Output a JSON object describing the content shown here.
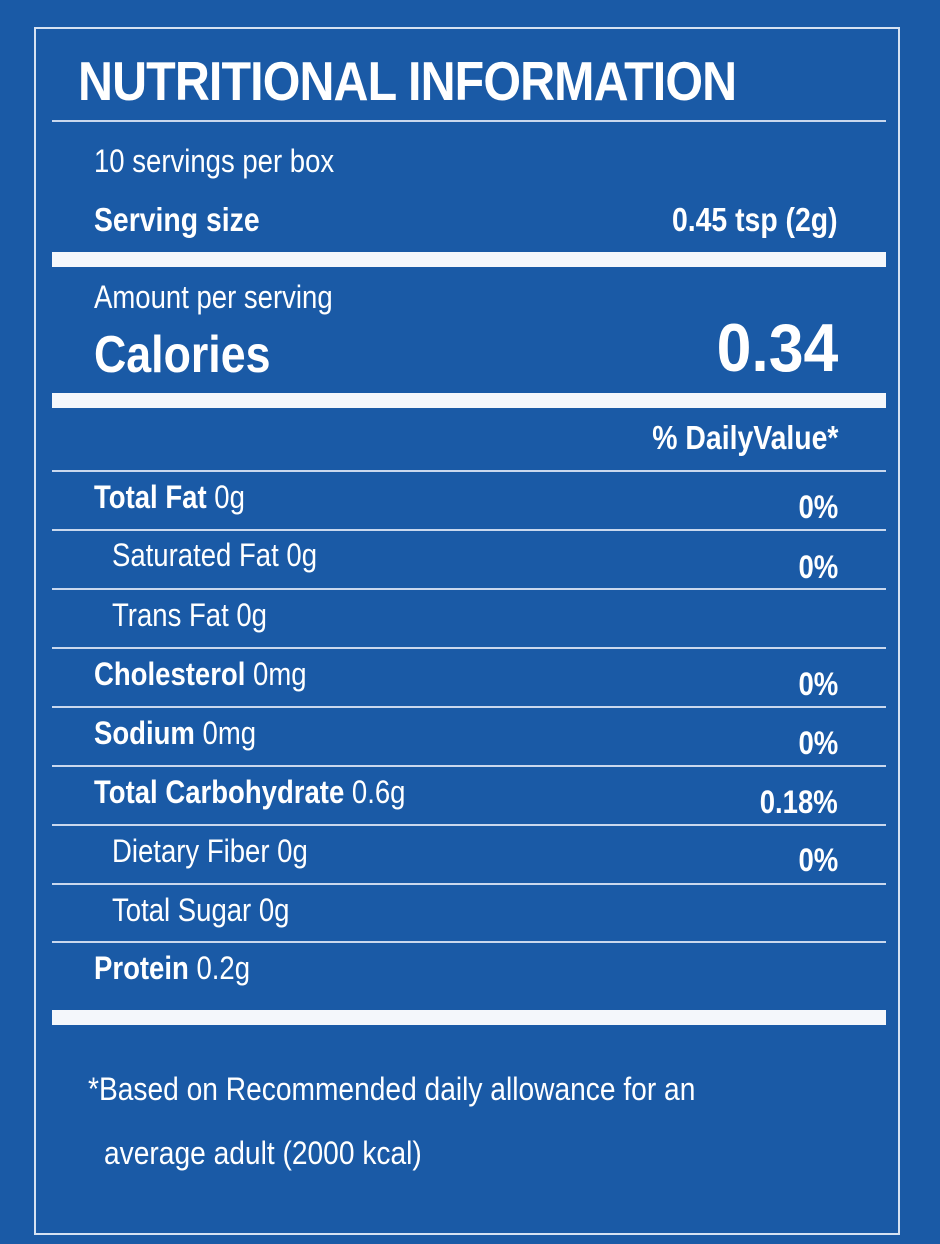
{
  "label": {
    "title": "NUTRITIONAL INFORMATION",
    "servings_per_box": "10 servings per box",
    "serving_size_label": "Serving size",
    "serving_size_value": "0.45 tsp (2g)",
    "amount_per_serving": "Amount per serving",
    "calories_label": "Calories",
    "calories_value": "0.34",
    "daily_value_header": "% DailyValue*",
    "nutrients": [
      {
        "name": "Total Fat",
        "amount": "0g",
        "dv": "0%"
      },
      {
        "name": "Saturated Fat",
        "amount": "0g",
        "dv": "0%"
      },
      {
        "name": "Trans Fat",
        "amount": "0g",
        "dv": ""
      },
      {
        "name": "Cholesterol",
        "amount": "0mg",
        "dv": "0%"
      },
      {
        "name": "Sodium",
        "amount": "0mg",
        "dv": "0%"
      },
      {
        "name": "Total Carbohydrate",
        "amount": "0.6g",
        "dv": "0.18%"
      },
      {
        "name": "Dietary Fiber",
        "amount": "0g",
        "dv": "0%"
      },
      {
        "name": "Total Sugar",
        "amount": "0g",
        "dv": ""
      },
      {
        "name": "Protein",
        "amount": "0.2g",
        "dv": ""
      }
    ],
    "footnote_line1": "*Based on Recommended daily allowance for an",
    "footnote_line2": "average adult (2000 kcal)"
  },
  "colors": {
    "background": "#1a5aa6",
    "text": "#ffffff",
    "rule": "#f4f7fb"
  }
}
